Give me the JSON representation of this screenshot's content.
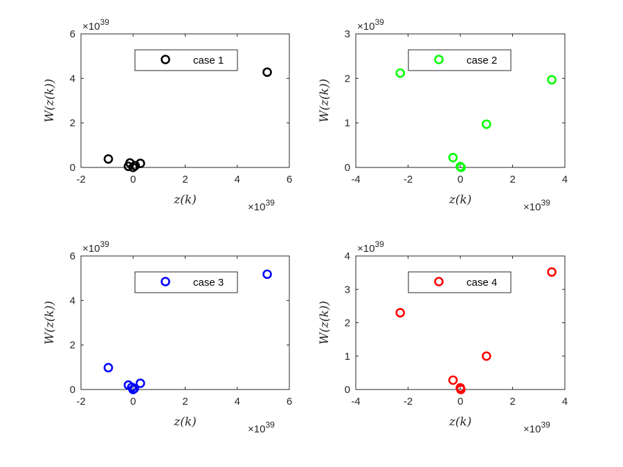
{
  "chart_data": [
    {
      "type": "scatter",
      "color": "#000000",
      "xlabel": "z(k)",
      "ylabel": "W(z(k))",
      "x_exponent": "×10",
      "x_exponent_power": "39",
      "y_exponent": "×10",
      "y_exponent_power": "39",
      "xlim": [
        -2,
        6
      ],
      "ylim": [
        0,
        6
      ],
      "xticks": [
        "-2",
        "0",
        "2",
        "4",
        "6"
      ],
      "yticks": [
        "0",
        "2",
        "4",
        "6"
      ],
      "legend": {
        "label": "case 1",
        "placement": "top-center"
      },
      "points": [
        {
          "x": -0.95,
          "y": 0.38
        },
        {
          "x": -0.18,
          "y": 0.05
        },
        {
          "x": -0.12,
          "y": 0.2
        },
        {
          "x": 0.0,
          "y": 0.0
        },
        {
          "x": 0.08,
          "y": 0.08
        },
        {
          "x": 0.28,
          "y": 0.18
        },
        {
          "x": 5.15,
          "y": 4.28
        }
      ]
    },
    {
      "type": "scatter",
      "color": "#00ff00",
      "xlabel": "z(k)",
      "ylabel": "W(z(k))",
      "x_exponent": "×10",
      "x_exponent_power": "39",
      "y_exponent": "×10",
      "y_exponent_power": "39",
      "xlim": [
        -4,
        4
      ],
      "ylim": [
        0,
        3
      ],
      "xticks": [
        "-4",
        "-2",
        "0",
        "2",
        "4"
      ],
      "yticks": [
        "0",
        "1",
        "2",
        "3"
      ],
      "legend": {
        "label": "case 2",
        "placement": "top-center"
      },
      "points": [
        {
          "x": -2.3,
          "y": 2.12
        },
        {
          "x": -0.28,
          "y": 0.22
        },
        {
          "x": 0.0,
          "y": 0.02
        },
        {
          "x": 0.03,
          "y": 0.0
        },
        {
          "x": 1.0,
          "y": 0.97
        },
        {
          "x": 3.5,
          "y": 1.97
        }
      ]
    },
    {
      "type": "scatter",
      "color": "#0000ff",
      "xlabel": "z(k)",
      "ylabel": "W(z(k))",
      "x_exponent": "×10",
      "x_exponent_power": "39",
      "y_exponent": "×10",
      "y_exponent_power": "39",
      "xlim": [
        -2,
        6
      ],
      "ylim": [
        0,
        6
      ],
      "xticks": [
        "-2",
        "0",
        "2",
        "4",
        "6"
      ],
      "yticks": [
        "0",
        "2",
        "4",
        "6"
      ],
      "legend": {
        "label": "case 3",
        "placement": "top-center"
      },
      "points": [
        {
          "x": -0.95,
          "y": 0.98
        },
        {
          "x": -0.18,
          "y": 0.2
        },
        {
          "x": -0.05,
          "y": 0.1
        },
        {
          "x": 0.0,
          "y": 0.0
        },
        {
          "x": 0.05,
          "y": 0.05
        },
        {
          "x": 0.28,
          "y": 0.28
        },
        {
          "x": 5.15,
          "y": 5.18
        }
      ]
    },
    {
      "type": "scatter",
      "color": "#ff0000",
      "xlabel": "z(k)",
      "ylabel": "W(z(k))",
      "x_exponent": "×10",
      "x_exponent_power": "39",
      "y_exponent": "×10",
      "y_exponent_power": "39",
      "xlim": [
        -4,
        4
      ],
      "ylim": [
        0,
        4
      ],
      "xticks": [
        "-4",
        "-2",
        "0",
        "2",
        "4"
      ],
      "yticks": [
        "0",
        "1",
        "2",
        "3",
        "4"
      ],
      "legend": {
        "label": "case 4",
        "placement": "top-center"
      },
      "points": [
        {
          "x": -2.3,
          "y": 2.3
        },
        {
          "x": -0.28,
          "y": 0.28
        },
        {
          "x": 0.0,
          "y": 0.05
        },
        {
          "x": 0.02,
          "y": 0.0
        },
        {
          "x": 1.0,
          "y": 1.0
        },
        {
          "x": 3.5,
          "y": 3.52
        }
      ]
    }
  ]
}
